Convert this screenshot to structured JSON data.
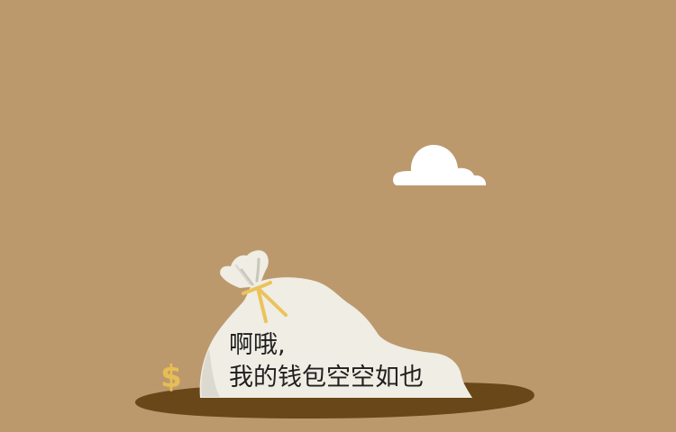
{
  "illustration": {
    "name": "empty-wallet-illustration",
    "colors": {
      "background": "#bc996d",
      "ground": "#694718",
      "bag": "#efede4",
      "bag_shadow": "#d8d6cc",
      "tie": "#ecc25c",
      "coin": "#e8bd55",
      "cloud": "#ffffff"
    },
    "icons": [
      "cloud-icon",
      "money-bag-icon",
      "dollar-sign-icon"
    ]
  },
  "message": {
    "line1": "啊哦,",
    "line2": "我的钱包空空如也"
  },
  "coin_symbol": "$"
}
